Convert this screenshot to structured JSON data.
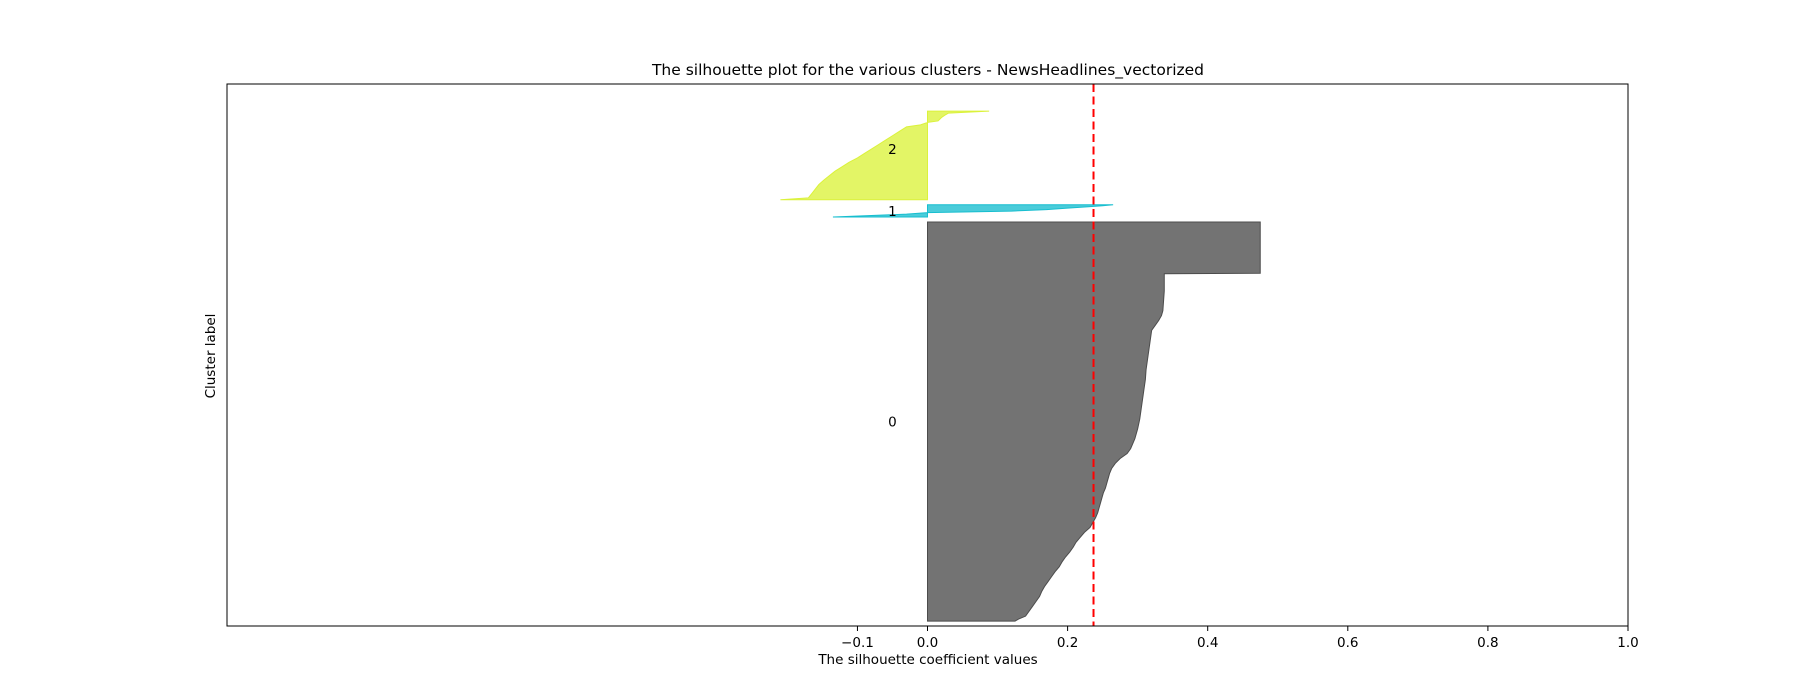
{
  "chart_data": {
    "type": "area",
    "title": "The silhouette plot for the various clusters - NewsHeadlines_vectorized",
    "xlabel": "The silhouette coefficient values",
    "ylabel": "Cluster label",
    "xlim": [
      -1.0,
      1.0
    ],
    "xticks": [
      -0.1,
      0.0,
      0.2,
      0.4,
      0.6,
      0.8,
      1.0
    ],
    "xtick_labels": [
      "−0.1",
      "0.0",
      "0.2",
      "0.4",
      "0.6",
      "0.8",
      "1.0"
    ],
    "yticks": [],
    "grid": false,
    "average_silhouette": 0.237,
    "average_line_color": "#ff0000",
    "ylim": [
      0,
      1100
    ],
    "clusters": [
      {
        "label": "0",
        "color": "#4c4c4c",
        "y_lower": 10,
        "y_upper": 820,
        "y_label_pos": 415,
        "points": [
          [
            10,
            0.125
          ],
          [
            14,
            0.13
          ],
          [
            20,
            0.14
          ],
          [
            30,
            0.145
          ],
          [
            40,
            0.15
          ],
          [
            50,
            0.155
          ],
          [
            60,
            0.16
          ],
          [
            70,
            0.163
          ],
          [
            80,
            0.167
          ],
          [
            90,
            0.172
          ],
          [
            100,
            0.177
          ],
          [
            110,
            0.182
          ],
          [
            120,
            0.188
          ],
          [
            130,
            0.192
          ],
          [
            140,
            0.197
          ],
          [
            150,
            0.203
          ],
          [
            160,
            0.208
          ],
          [
            170,
            0.212
          ],
          [
            180,
            0.218
          ],
          [
            190,
            0.224
          ],
          [
            200,
            0.232
          ],
          [
            210,
            0.236
          ],
          [
            220,
            0.24
          ],
          [
            230,
            0.243
          ],
          [
            240,
            0.245
          ],
          [
            250,
            0.247
          ],
          [
            260,
            0.249
          ],
          [
            270,
            0.251
          ],
          [
            280,
            0.254
          ],
          [
            290,
            0.256
          ],
          [
            300,
            0.258
          ],
          [
            310,
            0.26
          ],
          [
            320,
            0.263
          ],
          [
            330,
            0.268
          ],
          [
            340,
            0.275
          ],
          [
            350,
            0.285
          ],
          [
            360,
            0.29
          ],
          [
            370,
            0.293
          ],
          [
            380,
            0.296
          ],
          [
            400,
            0.3
          ],
          [
            420,
            0.303
          ],
          [
            440,
            0.305
          ],
          [
            460,
            0.307
          ],
          [
            480,
            0.309
          ],
          [
            500,
            0.311
          ],
          [
            520,
            0.312
          ],
          [
            540,
            0.314
          ],
          [
            560,
            0.316
          ],
          [
            580,
            0.318
          ],
          [
            600,
            0.32
          ],
          [
            610,
            0.325
          ],
          [
            620,
            0.33
          ],
          [
            630,
            0.334
          ],
          [
            640,
            0.336
          ],
          [
            660,
            0.337
          ],
          [
            680,
            0.338
          ],
          [
            700,
            0.338
          ],
          [
            715,
            0.338
          ],
          [
            716,
            0.475
          ],
          [
            820,
            0.475
          ]
        ]
      },
      {
        "label": "1",
        "color": "#17becf",
        "y_lower": 830,
        "y_upper": 855,
        "y_label_pos": 842,
        "points": [
          [
            830,
            -0.135
          ],
          [
            833,
            -0.08
          ],
          [
            836,
            -0.03
          ],
          [
            839,
            0.0
          ],
          [
            842,
            0.12
          ],
          [
            845,
            0.17
          ],
          [
            848,
            0.2
          ],
          [
            851,
            0.23
          ],
          [
            853,
            0.25
          ],
          [
            855,
            0.265
          ]
        ]
      },
      {
        "label": "2",
        "color": "#dbf23b",
        "y_lower": 865,
        "y_upper": 1045,
        "y_label_pos": 968,
        "points": [
          [
            865,
            -0.21
          ],
          [
            869,
            -0.17
          ],
          [
            878,
            -0.165
          ],
          [
            887,
            -0.16
          ],
          [
            896,
            -0.155
          ],
          [
            905,
            -0.148
          ],
          [
            914,
            -0.14
          ],
          [
            923,
            -0.132
          ],
          [
            932,
            -0.122
          ],
          [
            941,
            -0.112
          ],
          [
            950,
            -0.1
          ],
          [
            959,
            -0.09
          ],
          [
            968,
            -0.08
          ],
          [
            977,
            -0.07
          ],
          [
            986,
            -0.06
          ],
          [
            995,
            -0.05
          ],
          [
            1004,
            -0.04
          ],
          [
            1013,
            -0.03
          ],
          [
            1017,
            -0.01
          ],
          [
            1022,
            0.0
          ],
          [
            1025,
            0.015
          ],
          [
            1032,
            0.02
          ],
          [
            1037,
            0.025
          ],
          [
            1041,
            0.03
          ],
          [
            1045,
            0.088
          ]
        ]
      }
    ]
  }
}
